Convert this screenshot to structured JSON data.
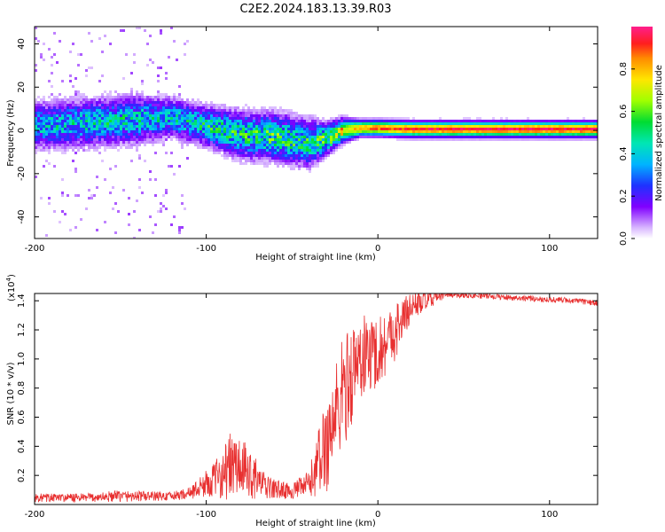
{
  "title": "C2E2.2024.183.13.39.R03",
  "chart_data": [
    {
      "type": "heatmap",
      "name": "spectrogram",
      "title": "C2E2.2024.183.13.39.R03",
      "xlabel": "Height of straight line (km)",
      "ylabel": "Frequency (Hz)",
      "xlim": [
        -200,
        128
      ],
      "ylim": [
        -50,
        48
      ],
      "x_ticks": [
        -200,
        -100,
        0,
        100
      ],
      "x_tick_labels": [
        "-200",
        "-100",
        "0",
        "100"
      ],
      "y_ticks": [
        -40,
        -20,
        0,
        20,
        40
      ],
      "y_tick_labels": [
        "-40",
        "-20",
        "0",
        "20",
        "40"
      ],
      "colorbar": {
        "label": "Normalized spectral amplitude",
        "range": [
          0,
          1
        ],
        "ticks": [
          0.0,
          0.2,
          0.4,
          0.6,
          0.8
        ],
        "tick_labels": [
          "0.0",
          "0.2",
          "0.4",
          "0.6",
          "0.8"
        ]
      },
      "ridge": [
        {
          "x": -200,
          "freq": 2,
          "spread": 6,
          "amp": 0.35
        },
        {
          "x": -180,
          "freq": 3,
          "spread": 6,
          "amp": 0.38
        },
        {
          "x": -160,
          "freq": 4,
          "spread": 6,
          "amp": 0.4
        },
        {
          "x": -140,
          "freq": 5,
          "spread": 6,
          "amp": 0.4
        },
        {
          "x": -120,
          "freq": 6,
          "spread": 5,
          "amp": 0.38
        },
        {
          "x": -100,
          "freq": 2,
          "spread": 5,
          "amp": 0.45
        },
        {
          "x": -80,
          "freq": -2,
          "spread": 6,
          "amp": 0.45
        },
        {
          "x": -60,
          "freq": -3,
          "spread": 6,
          "amp": 0.5
        },
        {
          "x": -40,
          "freq": -6,
          "spread": 6,
          "amp": 0.45
        },
        {
          "x": -30,
          "freq": -4,
          "spread": 4,
          "amp": 0.55
        },
        {
          "x": -20,
          "freq": 0,
          "spread": 3,
          "amp": 0.7
        },
        {
          "x": -10,
          "freq": 1,
          "spread": 2,
          "amp": 0.85
        },
        {
          "x": 0,
          "freq": 1,
          "spread": 2,
          "amp": 0.9
        },
        {
          "x": 20,
          "freq": 0.5,
          "spread": 2,
          "amp": 0.95
        },
        {
          "x": 60,
          "freq": 0.5,
          "spread": 2,
          "amp": 0.97
        },
        {
          "x": 100,
          "freq": 0.5,
          "spread": 2,
          "amp": 0.98
        },
        {
          "x": 128,
          "freq": 0.5,
          "spread": 2,
          "amp": 0.98
        }
      ]
    },
    {
      "type": "line",
      "name": "snr",
      "xlabel": "Height of straight line (km)",
      "ylabel": "SNR (10 * v/v)",
      "y_multiplier_label": "(x10",
      "y_multiplier_exp": "4",
      "y_multiplier_close": ")",
      "xlim": [
        -200,
        128
      ],
      "ylim": [
        0,
        1.45
      ],
      "x_ticks": [
        -200,
        -100,
        0,
        100
      ],
      "x_tick_labels": [
        "-200",
        "-100",
        "0",
        "100"
      ],
      "y_ticks": [
        0.2,
        0.4,
        0.6,
        0.8,
        1.0,
        1.2,
        1.4
      ],
      "y_tick_labels": [
        "0.2",
        "0.4",
        "0.6",
        "0.8",
        "1.0",
        "1.2",
        "1.4"
      ],
      "color": "#e83030",
      "envelope": [
        {
          "x": -200,
          "mean": 0.04,
          "noise": 0.03
        },
        {
          "x": -170,
          "mean": 0.04,
          "noise": 0.03
        },
        {
          "x": -150,
          "mean": 0.05,
          "noise": 0.04
        },
        {
          "x": -120,
          "mean": 0.05,
          "noise": 0.03
        },
        {
          "x": -110,
          "mean": 0.07,
          "noise": 0.04
        },
        {
          "x": -95,
          "mean": 0.15,
          "noise": 0.12
        },
        {
          "x": -85,
          "mean": 0.22,
          "noise": 0.25
        },
        {
          "x": -75,
          "mean": 0.18,
          "noise": 0.18
        },
        {
          "x": -65,
          "mean": 0.1,
          "noise": 0.08
        },
        {
          "x": -50,
          "mean": 0.08,
          "noise": 0.05
        },
        {
          "x": -40,
          "mean": 0.12,
          "noise": 0.1
        },
        {
          "x": -30,
          "mean": 0.35,
          "noise": 0.35
        },
        {
          "x": -20,
          "mean": 0.7,
          "noise": 0.4
        },
        {
          "x": -10,
          "mean": 0.95,
          "noise": 0.3
        },
        {
          "x": 0,
          "mean": 1.0,
          "noise": 0.25
        },
        {
          "x": 10,
          "mean": 1.15,
          "noise": 0.2
        },
        {
          "x": 20,
          "mean": 1.35,
          "noise": 0.1
        },
        {
          "x": 40,
          "mean": 1.44,
          "noise": 0.02
        },
        {
          "x": 60,
          "mean": 1.43,
          "noise": 0.02
        },
        {
          "x": 90,
          "mean": 1.41,
          "noise": 0.02
        },
        {
          "x": 110,
          "mean": 1.4,
          "noise": 0.02
        },
        {
          "x": 128,
          "mean": 1.38,
          "noise": 0.02
        }
      ]
    }
  ]
}
